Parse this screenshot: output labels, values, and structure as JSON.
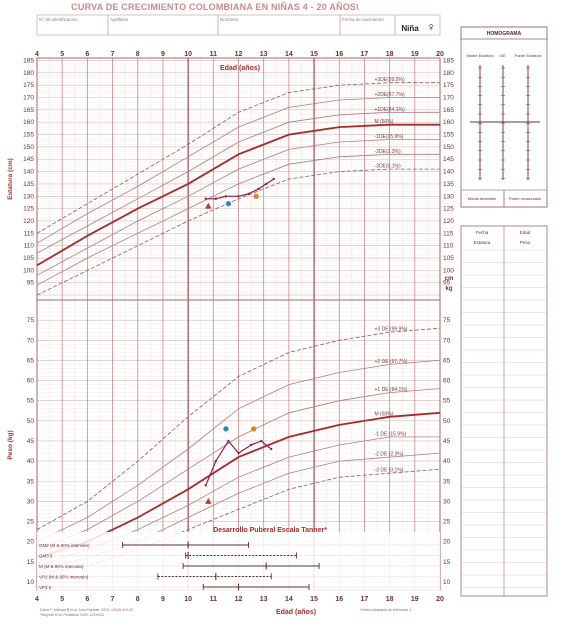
{
  "header": {
    "title": "CURVA DE CRECIMIENTO COLOMBIANA EN NIÑAS 4 - 20 AÑOS\\",
    "fields": [
      "N° de identificación",
      "Apellidos",
      "Nombres",
      "Fecha de nacimiento"
    ],
    "sex_label": "Niña",
    "sex_symbol": "♀"
  },
  "homograma": {
    "title": "HOMOGRAMA",
    "col_left": "Madre Estatura",
    "col_mid": "DE",
    "col_right": "Padre Estatura",
    "bottom_left": "Media deseable",
    "bottom_right": "Padre recalculado"
  },
  "side_table": {
    "headers_top": [
      "Fecha",
      "Edad"
    ],
    "headers_bottom": [
      "Estatura",
      "Peso"
    ]
  },
  "chart_data": {
    "type": "line",
    "x_label": "Edad (años)",
    "x_ticks": [
      4,
      5,
      6,
      7,
      8,
      9,
      10,
      11,
      12,
      13,
      14,
      15,
      16,
      17,
      18,
      19,
      20
    ],
    "xlim": [
      4,
      20
    ],
    "height": {
      "ylabel": "Estatura (cm)",
      "unit_right": "cm",
      "ticks": [
        95,
        100,
        105,
        110,
        115,
        120,
        125,
        130,
        135,
        140,
        145,
        150,
        155,
        160,
        165,
        170,
        175,
        180,
        185
      ],
      "ylim": [
        88,
        186
      ],
      "series": [
        {
          "name": "+3DE(99.9%)",
          "style": "dashed",
          "x": [
            4,
            6,
            8,
            10,
            12,
            14,
            16,
            18,
            20
          ],
          "y": [
            115,
            127,
            139,
            151,
            164,
            172,
            175,
            176,
            176
          ]
        },
        {
          "name": "+2DE(97.7%)",
          "style": "thin",
          "x": [
            4,
            6,
            8,
            10,
            12,
            14,
            16,
            18,
            20
          ],
          "y": [
            111,
            123,
            134,
            146,
            158,
            166,
            169,
            170,
            170
          ]
        },
        {
          "name": "+1DE(84.1%)",
          "style": "thin",
          "x": [
            4,
            6,
            8,
            10,
            12,
            14,
            16,
            18,
            20
          ],
          "y": [
            107,
            118,
            129,
            140,
            152,
            160,
            163,
            164,
            164
          ]
        },
        {
          "name": "M (50%)",
          "style": "median",
          "x": [
            4,
            6,
            8,
            10,
            12,
            14,
            16,
            18,
            20
          ],
          "y": [
            102,
            114,
            125,
            135,
            147,
            155,
            158,
            159,
            159
          ]
        },
        {
          "name": "-1DE(15.9%)",
          "style": "thin",
          "x": [
            4,
            6,
            8,
            10,
            12,
            14,
            16,
            18,
            20
          ],
          "y": [
            98,
            109,
            120,
            130,
            141,
            149,
            152,
            153,
            153
          ]
        },
        {
          "name": "-2DE(2.3%)",
          "style": "thin",
          "x": [
            4,
            6,
            8,
            10,
            12,
            14,
            16,
            18,
            20
          ],
          "y": [
            94,
            105,
            115,
            125,
            135,
            143,
            146,
            147,
            147
          ]
        },
        {
          "name": "-3DE(0.1%)",
          "style": "dashed",
          "x": [
            4,
            6,
            8,
            10,
            12,
            14,
            16,
            18,
            20
          ],
          "y": [
            90,
            100,
            110,
            120,
            129,
            137,
            140,
            141,
            141
          ]
        }
      ],
      "patient": {
        "x": [
          10.7,
          11.1,
          11.5,
          12.0,
          12.4,
          12.8,
          13.1,
          13.4
        ],
        "y": [
          129,
          129,
          130,
          130,
          131,
          133,
          135,
          137
        ]
      },
      "markers": [
        {
          "label": "A",
          "shape": "triangle",
          "color": "#c0392b",
          "x": 10.8,
          "y": 126
        },
        {
          "label": "blue",
          "shape": "circle",
          "color": "#2e86c1",
          "x": 11.6,
          "y": 127
        },
        {
          "label": "orange",
          "shape": "circle",
          "color": "#e67e22",
          "x": 12.7,
          "y": 130
        }
      ]
    },
    "weight": {
      "ylabel": "Peso (kg)",
      "unit_right": "kg",
      "ticks": [
        10,
        15,
        20,
        25,
        30,
        35,
        40,
        45,
        50,
        55,
        60,
        65,
        70,
        75
      ],
      "ylim": [
        8,
        80
      ],
      "series": [
        {
          "name": "+3 DE (99.9%)",
          "style": "dashed",
          "x": [
            4,
            6,
            8,
            10,
            12,
            14,
            16,
            18,
            20
          ],
          "y": [
            23,
            30,
            40,
            51,
            61,
            67,
            70,
            72,
            73
          ]
        },
        {
          "name": "+2 DE (97.7%)",
          "style": "thin",
          "x": [
            4,
            6,
            8,
            10,
            12,
            14,
            16,
            18,
            20
          ],
          "y": [
            20,
            26,
            34,
            43,
            53,
            59,
            62,
            64,
            65
          ]
        },
        {
          "name": "+1 DE (84.1%)",
          "style": "thin",
          "x": [
            4,
            6,
            8,
            10,
            12,
            14,
            16,
            18,
            20
          ],
          "y": [
            18,
            23,
            30,
            38,
            46,
            52,
            55,
            57,
            58
          ]
        },
        {
          "name": "M (50%)",
          "style": "median",
          "x": [
            4,
            6,
            8,
            10,
            12,
            14,
            16,
            18,
            20
          ],
          "y": [
            16,
            20,
            26,
            33,
            41,
            46,
            49,
            51,
            52
          ]
        },
        {
          "name": "-1 DE (15.9%)",
          "style": "thin",
          "x": [
            4,
            6,
            8,
            10,
            12,
            14,
            16,
            18,
            20
          ],
          "y": [
            14,
            18,
            23,
            29,
            36,
            41,
            44,
            46,
            46
          ]
        },
        {
          "name": "-2 DE (2.3%)",
          "style": "thin",
          "x": [
            4,
            6,
            8,
            10,
            12,
            14,
            16,
            18,
            20
          ],
          "y": [
            13,
            16,
            20,
            26,
            32,
            37,
            40,
            41,
            42
          ]
        },
        {
          "name": "-3 DE (0.1%)",
          "style": "dashed",
          "x": [
            4,
            6,
            8,
            10,
            12,
            14,
            16,
            18,
            20
          ],
          "y": [
            12,
            14,
            18,
            23,
            28,
            33,
            36,
            37,
            38
          ]
        }
      ],
      "patient": {
        "x": [
          10.7,
          11.1,
          11.6,
          12.0,
          12.5,
          12.9,
          13.3
        ],
        "y": [
          34,
          40,
          45,
          42,
          44,
          45,
          43
        ]
      },
      "markers": [
        {
          "label": "A",
          "shape": "triangle",
          "color": "#c0392b",
          "x": 10.8,
          "y": 30
        },
        {
          "label": "blue",
          "shape": "circle",
          "color": "#2e86c1",
          "x": 11.5,
          "y": 48
        },
        {
          "label": "orange",
          "shape": "circle",
          "color": "#e67e22",
          "x": 12.6,
          "y": 48
        }
      ]
    },
    "tanner": {
      "title": "Desarrollo Puberal Escala Tanner*",
      "rows": [
        {
          "label": "GM2 (M & 50% intervalo)",
          "x_start": 7.4,
          "x_mid": 10.0,
          "x_end": 12.4
        },
        {
          "label": "GM3 5",
          "x_start": 9.9,
          "x_mid": 10.0,
          "x_end": 14.3
        },
        {
          "label": "M (M & 95% intervalo)",
          "x_start": 9.8,
          "x_mid": 13.1,
          "x_end": 15.2
        },
        {
          "label": "VP2 (M & 95% intervalo)",
          "x_start": 8.8,
          "x_mid": 11.1,
          "x_end": 13.3
        },
        {
          "label": "VP3 5",
          "x_start": 10.6,
          "x_mid": 12.0,
          "x_end": 14.8
        }
      ]
    },
    "footnote_left": "Datos F. Michael B et al. Acta Paediatr. 2010; 100(3):410-20",
    "footnote_left2": "*Marjorie et al. Pediatrics 2009; 123:e932",
    "footnote_right": "Gráfico adaptado de referencia 1"
  }
}
